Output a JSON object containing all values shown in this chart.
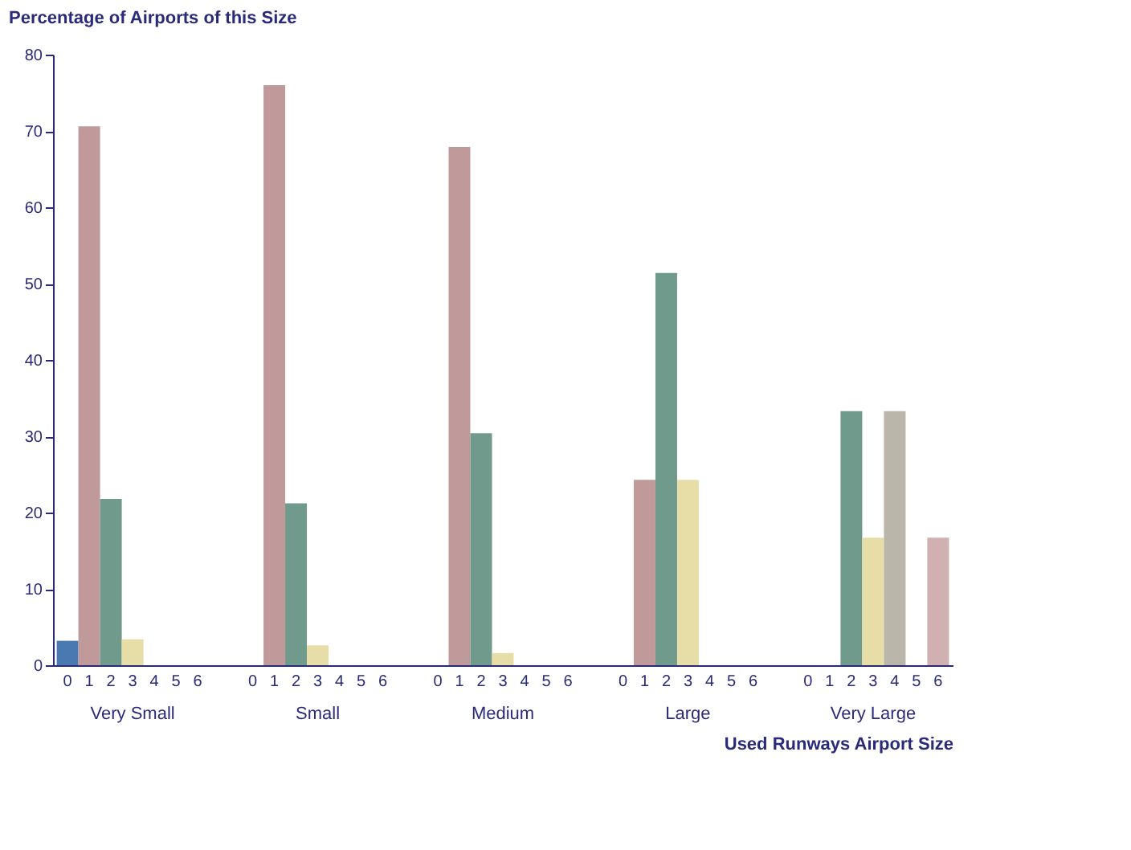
{
  "chart_data": {
    "type": "bar",
    "title": "Percentage of Airports of this Size",
    "xlabel": "Used Runways  Airport Size",
    "categories": [
      "Very Small",
      "Small",
      "Medium",
      "Large",
      "Very Large"
    ],
    "series": [
      {
        "name": "0",
        "color": "#4a78b0",
        "values": [
          3.2,
          0,
          0,
          0,
          0
        ]
      },
      {
        "name": "1",
        "color": "#c09a9a",
        "values": [
          70.6,
          76,
          67.9,
          24.3,
          0
        ]
      },
      {
        "name": "2",
        "color": "#6f9a8c",
        "values": [
          21.8,
          21.2,
          30.4,
          51.4,
          33.3
        ]
      },
      {
        "name": "3",
        "color": "#e6dea6",
        "values": [
          3.4,
          2.6,
          1.6,
          24.3,
          16.7
        ]
      },
      {
        "name": "4",
        "color": "#bab6aa",
        "values": [
          0,
          0,
          0,
          0,
          33.3
        ]
      },
      {
        "name": "5",
        "values": [
          0,
          0,
          0,
          0,
          0
        ]
      },
      {
        "name": "6",
        "color": "#d0b0b0",
        "values": [
          0,
          0,
          0,
          0,
          16.7
        ]
      }
    ],
    "ylim": [
      0,
      80
    ],
    "yticks": [
      0,
      10,
      20,
      30,
      40,
      50,
      60,
      70,
      80
    ],
    "grid": false,
    "legend": false
  }
}
